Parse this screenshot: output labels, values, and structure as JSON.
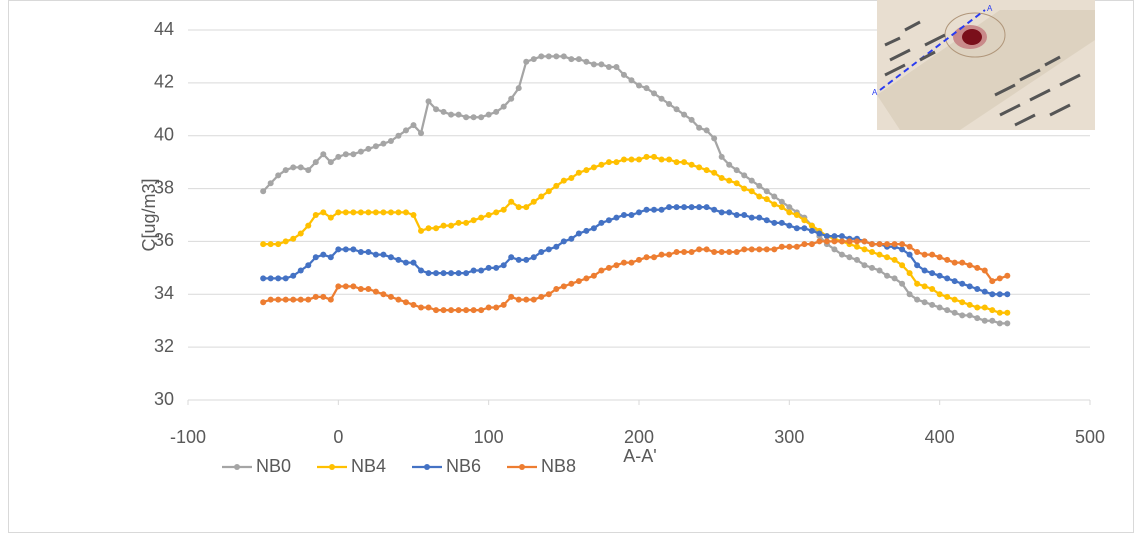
{
  "chart_data": {
    "type": "line",
    "x_label": "A-A'",
    "y_label": "C[ug/m3]",
    "xlim": [
      -100,
      500
    ],
    "xticks": [
      -100,
      0,
      100,
      200,
      300,
      400,
      500
    ],
    "ylim": [
      30,
      44
    ],
    "yticks": [
      30,
      32,
      34,
      36,
      38,
      40,
      42,
      44
    ],
    "grid": true,
    "legend": "bottom",
    "inset_labels": [
      "A",
      "A"
    ],
    "x": [
      -50,
      -45,
      -40,
      -35,
      -30,
      -25,
      -20,
      -15,
      -10,
      -5,
      0,
      5,
      10,
      15,
      20,
      25,
      30,
      35,
      40,
      45,
      50,
      55,
      60,
      65,
      70,
      75,
      80,
      85,
      90,
      95,
      100,
      105,
      110,
      115,
      120,
      125,
      130,
      135,
      140,
      145,
      150,
      155,
      160,
      165,
      170,
      175,
      180,
      185,
      190,
      195,
      200,
      205,
      210,
      215,
      220,
      225,
      230,
      235,
      240,
      245,
      250,
      255,
      260,
      265,
      270,
      275,
      280,
      285,
      290,
      295,
      300,
      305,
      310,
      315,
      320,
      325,
      330,
      335,
      340,
      345,
      350,
      355,
      360,
      365,
      370,
      375,
      380,
      385,
      390,
      395,
      400,
      405,
      410,
      415,
      420,
      425,
      430,
      435,
      440,
      445
    ],
    "series": [
      {
        "name": "NB0",
        "color": "#a5a5a5",
        "values": [
          37.9,
          38.2,
          38.5,
          38.7,
          38.8,
          38.8,
          38.7,
          39.0,
          39.3,
          39.0,
          39.2,
          39.3,
          39.3,
          39.4,
          39.5,
          39.6,
          39.7,
          39.8,
          40.0,
          40.2,
          40.4,
          40.1,
          41.3,
          41.0,
          40.9,
          40.8,
          40.8,
          40.7,
          40.7,
          40.7,
          40.8,
          40.9,
          41.1,
          41.4,
          41.8,
          42.8,
          42.9,
          43.0,
          43.0,
          43.0,
          43.0,
          42.9,
          42.9,
          42.8,
          42.7,
          42.7,
          42.6,
          42.6,
          42.3,
          42.1,
          41.9,
          41.8,
          41.6,
          41.4,
          41.2,
          41.0,
          40.8,
          40.6,
          40.3,
          40.2,
          39.9,
          39.2,
          38.9,
          38.7,
          38.5,
          38.3,
          38.1,
          37.9,
          37.7,
          37.5,
          37.3,
          37.1,
          36.9,
          36.6,
          36.2,
          35.9,
          35.7,
          35.5,
          35.4,
          35.3,
          35.1,
          35.0,
          34.9,
          34.7,
          34.6,
          34.4,
          34.0,
          33.8,
          33.7,
          33.6,
          33.5,
          33.4,
          33.3,
          33.2,
          33.2,
          33.1,
          33.0,
          33.0,
          32.9,
          32.9
        ]
      },
      {
        "name": "NB4",
        "color": "#ffc000",
        "values": [
          35.9,
          35.9,
          35.9,
          36.0,
          36.1,
          36.3,
          36.6,
          37.0,
          37.1,
          36.9,
          37.1,
          37.1,
          37.1,
          37.1,
          37.1,
          37.1,
          37.1,
          37.1,
          37.1,
          37.1,
          37.0,
          36.4,
          36.5,
          36.5,
          36.6,
          36.6,
          36.7,
          36.7,
          36.8,
          36.9,
          37.0,
          37.1,
          37.2,
          37.5,
          37.3,
          37.3,
          37.5,
          37.7,
          37.9,
          38.1,
          38.3,
          38.4,
          38.6,
          38.7,
          38.8,
          38.9,
          39.0,
          39.0,
          39.1,
          39.1,
          39.1,
          39.2,
          39.2,
          39.1,
          39.1,
          39.0,
          39.0,
          38.9,
          38.8,
          38.7,
          38.6,
          38.4,
          38.3,
          38.2,
          38.0,
          37.9,
          37.7,
          37.6,
          37.4,
          37.3,
          37.1,
          37.0,
          36.8,
          36.6,
          36.4,
          36.2,
          36.1,
          36.0,
          35.9,
          35.8,
          35.7,
          35.6,
          35.5,
          35.4,
          35.3,
          35.1,
          34.8,
          34.4,
          34.3,
          34.2,
          34.0,
          33.9,
          33.8,
          33.7,
          33.6,
          33.5,
          33.5,
          33.4,
          33.3,
          33.3
        ]
      },
      {
        "name": "NB6",
        "color": "#4472c4",
        "values": [
          34.6,
          34.6,
          34.6,
          34.6,
          34.7,
          34.9,
          35.1,
          35.4,
          35.5,
          35.4,
          35.7,
          35.7,
          35.7,
          35.6,
          35.6,
          35.5,
          35.5,
          35.4,
          35.3,
          35.2,
          35.2,
          34.9,
          34.8,
          34.8,
          34.8,
          34.8,
          34.8,
          34.8,
          34.9,
          34.9,
          35.0,
          35.0,
          35.1,
          35.4,
          35.3,
          35.3,
          35.4,
          35.6,
          35.7,
          35.8,
          36.0,
          36.1,
          36.3,
          36.4,
          36.5,
          36.7,
          36.8,
          36.9,
          37.0,
          37.0,
          37.1,
          37.2,
          37.2,
          37.2,
          37.3,
          37.3,
          37.3,
          37.3,
          37.3,
          37.3,
          37.2,
          37.1,
          37.1,
          37.0,
          37.0,
          36.9,
          36.9,
          36.8,
          36.7,
          36.7,
          36.6,
          36.5,
          36.5,
          36.4,
          36.3,
          36.2,
          36.2,
          36.2,
          36.1,
          36.1,
          36.0,
          35.9,
          35.9,
          35.8,
          35.8,
          35.7,
          35.5,
          35.1,
          34.9,
          34.8,
          34.7,
          34.6,
          34.5,
          34.4,
          34.3,
          34.2,
          34.1,
          34.0,
          34.0,
          34.0
        ]
      },
      {
        "name": "NB8",
        "color": "#ed7d31",
        "values": [
          33.7,
          33.8,
          33.8,
          33.8,
          33.8,
          33.8,
          33.8,
          33.9,
          33.9,
          33.8,
          34.3,
          34.3,
          34.3,
          34.2,
          34.2,
          34.1,
          34.0,
          33.9,
          33.8,
          33.7,
          33.6,
          33.5,
          33.5,
          33.4,
          33.4,
          33.4,
          33.4,
          33.4,
          33.4,
          33.4,
          33.5,
          33.5,
          33.6,
          33.9,
          33.8,
          33.8,
          33.8,
          33.9,
          34.0,
          34.2,
          34.3,
          34.4,
          34.5,
          34.6,
          34.7,
          34.9,
          35.0,
          35.1,
          35.2,
          35.2,
          35.3,
          35.4,
          35.4,
          35.5,
          35.5,
          35.6,
          35.6,
          35.6,
          35.7,
          35.7,
          35.6,
          35.6,
          35.6,
          35.6,
          35.7,
          35.7,
          35.7,
          35.7,
          35.7,
          35.8,
          35.8,
          35.8,
          35.9,
          35.9,
          36.0,
          36.0,
          36.0,
          36.0,
          36.0,
          36.0,
          36.0,
          35.9,
          35.9,
          35.9,
          35.9,
          35.9,
          35.8,
          35.6,
          35.5,
          35.5,
          35.4,
          35.3,
          35.2,
          35.2,
          35.1,
          35.0,
          34.9,
          34.5,
          34.6,
          34.7
        ]
      }
    ]
  }
}
